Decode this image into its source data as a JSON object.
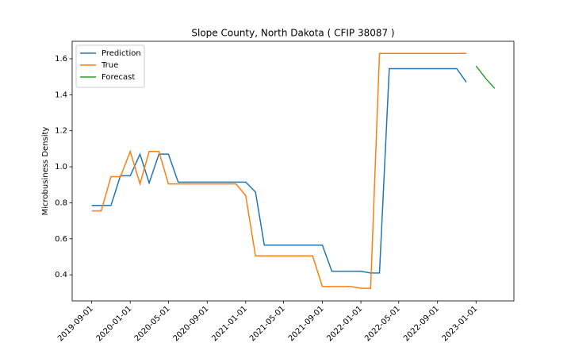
{
  "chart_data": {
    "type": "line",
    "title": "Slope County, North Dakota ( CFIP 38087 )",
    "y_label": "Microbusiness Density",
    "x": [
      "2019-09-01",
      "2019-10-01",
      "2019-11-01",
      "2019-12-01",
      "2020-01-01",
      "2020-02-01",
      "2020-03-01",
      "2020-04-01",
      "2020-05-01",
      "2020-06-01",
      "2020-07-01",
      "2020-08-01",
      "2020-09-01",
      "2020-10-01",
      "2020-11-01",
      "2020-12-01",
      "2021-01-01",
      "2021-02-01",
      "2021-03-01",
      "2021-04-01",
      "2021-05-01",
      "2021-06-01",
      "2021-07-01",
      "2021-08-01",
      "2021-09-01",
      "2021-10-01",
      "2021-11-01",
      "2021-12-01",
      "2022-01-01",
      "2022-02-01",
      "2022-03-01",
      "2022-04-01",
      "2022-05-01",
      "2022-06-01",
      "2022-07-01",
      "2022-08-01",
      "2022-09-01",
      "2022-10-01",
      "2022-11-01",
      "2022-12-01",
      "2023-01-01",
      "2023-02-01",
      "2023-03-01"
    ],
    "series": [
      {
        "name": "Prediction",
        "color": "#1f77b4",
        "values": [
          0.785,
          0.785,
          0.785,
          0.95,
          0.95,
          1.07,
          0.91,
          1.07,
          1.07,
          0.915,
          0.915,
          0.915,
          0.915,
          0.915,
          0.915,
          0.915,
          0.915,
          0.86,
          0.565,
          0.565,
          0.565,
          0.565,
          0.565,
          0.565,
          0.565,
          0.42,
          0.42,
          0.42,
          0.42,
          0.41,
          0.41,
          1.545,
          1.545,
          1.545,
          1.545,
          1.545,
          1.545,
          1.545,
          1.545,
          1.47,
          null,
          null,
          null
        ]
      },
      {
        "name": "True",
        "color": "#ff7f0e",
        "values": [
          0.755,
          0.755,
          0.945,
          0.945,
          1.085,
          0.905,
          1.085,
          1.085,
          0.905,
          0.905,
          0.905,
          0.905,
          0.905,
          0.905,
          0.905,
          0.905,
          0.84,
          0.505,
          0.505,
          0.505,
          0.505,
          0.505,
          0.505,
          0.505,
          0.335,
          0.335,
          0.335,
          0.335,
          0.325,
          0.325,
          1.63,
          1.63,
          1.63,
          1.63,
          1.63,
          1.63,
          1.63,
          1.63,
          1.63,
          1.63,
          null,
          null,
          null
        ]
      },
      {
        "name": "Forecast",
        "color": "#2ca02c",
        "values": [
          null,
          null,
          null,
          null,
          null,
          null,
          null,
          null,
          null,
          null,
          null,
          null,
          null,
          null,
          null,
          null,
          null,
          null,
          null,
          null,
          null,
          null,
          null,
          null,
          null,
          null,
          null,
          null,
          null,
          null,
          null,
          null,
          null,
          null,
          null,
          null,
          null,
          null,
          null,
          null,
          1.56,
          1.49,
          1.435
        ]
      }
    ],
    "xlim": [
      "2019-07-01",
      "2023-05-01"
    ],
    "xticks": [
      "2019-09-01",
      "2020-01-01",
      "2020-05-01",
      "2020-09-01",
      "2021-01-01",
      "2021-05-01",
      "2021-09-01",
      "2022-01-01",
      "2022-05-01",
      "2022-09-01",
      "2023-01-01"
    ],
    "ylim": [
      0.255,
      1.697
    ],
    "yticks": [
      0.4,
      0.6,
      0.8,
      {
        "value": 1.0,
        "label": "1.0"
      },
      1.2,
      1.4,
      1.6
    ],
    "legend": "upper left"
  }
}
